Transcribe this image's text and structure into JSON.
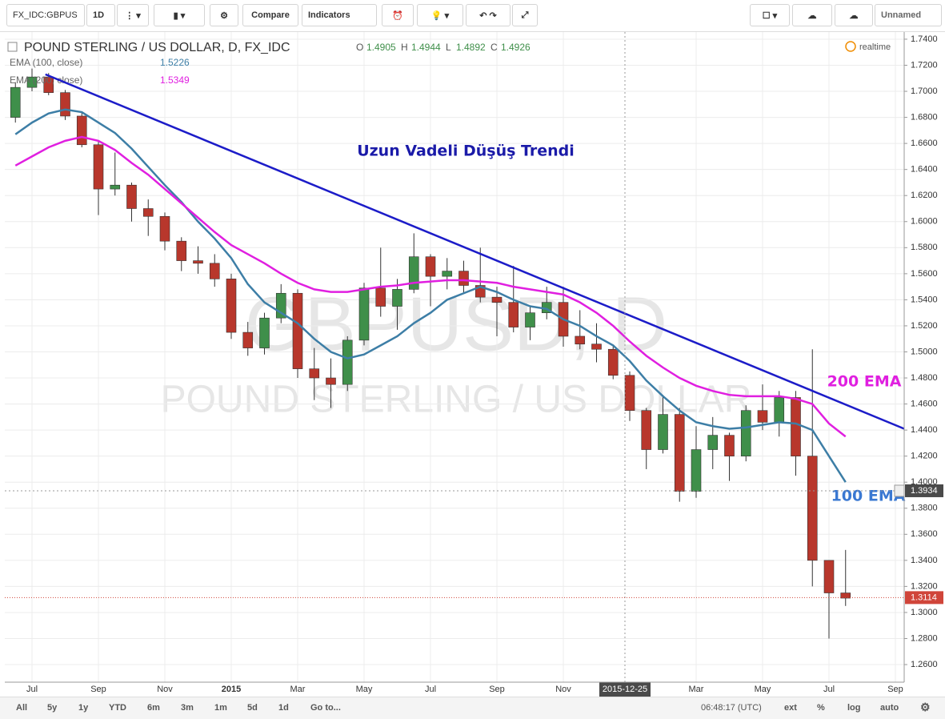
{
  "ui": {
    "toolbar": {
      "symbol": "FX_IDC:GBPUS",
      "interval": "1D",
      "compare": "Compare",
      "indicators": "Indicators",
      "layout": "Unnamed"
    },
    "bottom_bar": {
      "ranges": [
        "All",
        "5y",
        "1y",
        "YTD",
        "6m",
        "3m",
        "1m",
        "5d",
        "1d"
      ],
      "goto": "Go to...",
      "clock": "06:48:17 (UTC)",
      "options": [
        "ext",
        "%",
        "log",
        "auto"
      ]
    }
  },
  "chart_data": {
    "type": "candlestick",
    "title": "POUND STERLING / US DOLLAR, D, FX_IDC",
    "ohlc_legend": [
      {
        "label": "O",
        "value": 1.4905
      },
      {
        "label": "H",
        "value": 1.4944
      },
      {
        "label": "L",
        "value": 1.4892
      },
      {
        "label": "C",
        "value": 1.4926
      }
    ],
    "status": "realtime",
    "watermark": [
      "GBPUSD, D",
      "POUND STERLING / US DOLLAR"
    ],
    "categories": [
      null,
      "Jul",
      null,
      null,
      null,
      "Sep",
      null,
      null,
      null,
      "Nov",
      null,
      null,
      null,
      "2015",
      null,
      null,
      null,
      "Mar",
      null,
      null,
      null,
      "May",
      null,
      null,
      null,
      "Jul",
      null,
      null,
      null,
      "Sep",
      null,
      null,
      null,
      "Nov",
      null,
      null,
      null,
      null,
      null,
      null,
      null,
      "Mar",
      null,
      null,
      null,
      "May",
      null,
      null,
      null,
      "Jul",
      null,
      null,
      null,
      "Sep"
    ],
    "open": [
      1.68,
      1.703,
      1.711,
      1.699,
      1.681,
      1.659,
      1.625,
      1.628,
      1.61,
      1.604,
      1.585,
      1.57,
      1.568,
      1.556,
      1.515,
      1.503,
      1.526,
      1.545,
      1.487,
      1.48,
      1.475,
      1.509,
      1.549,
      1.535,
      1.548,
      1.573,
      1.558,
      1.562,
      1.551,
      1.542,
      1.538,
      1.519,
      1.53,
      1.538,
      1.512,
      1.506,
      1.502,
      1.482,
      1.455,
      1.425,
      1.452,
      1.393,
      1.425,
      1.436,
      1.42,
      1.455,
      1.446,
      1.465,
      1.42,
      1.34,
      1.315,
      null,
      null,
      null
    ],
    "high": [
      1.707,
      1.7175,
      1.714,
      1.701,
      1.684,
      1.662,
      1.653,
      1.63,
      1.617,
      1.607,
      1.588,
      1.581,
      1.575,
      1.56,
      1.523,
      1.53,
      1.552,
      1.548,
      1.503,
      1.495,
      1.512,
      1.553,
      1.58,
      1.556,
      1.591,
      1.575,
      1.572,
      1.57,
      1.58,
      1.55,
      1.566,
      1.535,
      1.55,
      1.55,
      1.532,
      1.522,
      1.505,
      1.485,
      1.457,
      1.467,
      1.457,
      1.443,
      1.45,
      1.438,
      1.459,
      1.475,
      1.47,
      1.47,
      1.502,
      1.34,
      1.348,
      null,
      null,
      null
    ],
    "low": [
      1.676,
      1.7,
      1.697,
      1.678,
      1.657,
      1.605,
      1.62,
      1.6,
      1.589,
      1.578,
      1.562,
      1.56,
      1.55,
      1.51,
      1.497,
      1.498,
      1.522,
      1.48,
      1.463,
      1.457,
      1.47,
      1.505,
      1.527,
      1.517,
      1.545,
      1.535,
      1.548,
      1.545,
      1.538,
      1.512,
      1.515,
      1.509,
      1.525,
      1.504,
      1.502,
      1.492,
      1.479,
      1.447,
      1.41,
      1.422,
      1.385,
      1.388,
      1.41,
      1.401,
      1.416,
      1.44,
      1.435,
      1.405,
      1.32,
      1.28,
      1.305,
      null,
      null,
      null
    ],
    "close": [
      1.703,
      1.711,
      1.699,
      1.681,
      1.659,
      1.625,
      1.628,
      1.61,
      1.604,
      1.585,
      1.57,
      1.568,
      1.556,
      1.515,
      1.503,
      1.526,
      1.545,
      1.487,
      1.48,
      1.475,
      1.509,
      1.549,
      1.535,
      1.548,
      1.573,
      1.558,
      1.562,
      1.551,
      1.542,
      1.538,
      1.519,
      1.53,
      1.538,
      1.512,
      1.506,
      1.502,
      1.482,
      1.455,
      1.425,
      1.452,
      1.393,
      1.425,
      1.436,
      1.42,
      1.455,
      1.446,
      1.465,
      1.42,
      1.34,
      1.315,
      1.311,
      null,
      null,
      null
    ],
    "up_color": "#3f8f4a",
    "down_color": "#b8372c",
    "series": [
      {
        "name": "EMA (100, close)",
        "color": "#3d7ea6",
        "legend_value": 1.5226,
        "values": [
          1.667,
          1.676,
          1.683,
          1.686,
          1.684,
          1.676,
          1.668,
          1.656,
          1.642,
          1.628,
          1.615,
          1.6,
          1.587,
          1.572,
          1.552,
          1.538,
          1.53,
          1.522,
          1.51,
          1.5,
          1.495,
          1.498,
          1.505,
          1.512,
          1.522,
          1.53,
          1.54,
          1.545,
          1.55,
          1.546,
          1.54,
          1.535,
          1.533,
          1.525,
          1.52,
          1.512,
          1.505,
          1.493,
          1.478,
          1.466,
          1.455,
          1.446,
          1.443,
          1.441,
          1.442,
          1.444,
          1.446,
          1.445,
          1.44,
          1.42,
          1.4,
          null,
          null,
          null
        ]
      },
      {
        "name": "EMA (200, close)",
        "color": "#e01fe0",
        "legend_value": 1.5349,
        "values": [
          1.643,
          1.65,
          1.657,
          1.662,
          1.665,
          1.662,
          1.655,
          1.645,
          1.636,
          1.625,
          1.614,
          1.603,
          1.592,
          1.582,
          1.575,
          1.568,
          1.56,
          1.553,
          1.548,
          1.546,
          1.546,
          1.548,
          1.55,
          1.551,
          1.553,
          1.554,
          1.555,
          1.555,
          1.554,
          1.553,
          1.55,
          1.548,
          1.546,
          1.544,
          1.538,
          1.53,
          1.52,
          1.508,
          1.497,
          1.488,
          1.48,
          1.474,
          1.47,
          1.467,
          1.466,
          1.466,
          1.466,
          1.464,
          1.46,
          1.445,
          1.435,
          null,
          null,
          null
        ]
      }
    ],
    "trendline": {
      "color": "#1c1cc8",
      "values": [
        1.713,
        1.441
      ]
    },
    "annotations": [
      {
        "text": "Uzun Vadeli Düşüş Trendi",
        "color": "#1a1aa8"
      },
      {
        "text": "200 EMA",
        "color": "#e01fe0"
      },
      {
        "text": "100 EMA",
        "color": "#3a78d2"
      }
    ],
    "crosshair": {
      "date": "2015-12-25",
      "price": 1.3934
    },
    "last_price": 1.3114,
    "last_price_color": "#d0453a",
    "ylim": [
      1.2465,
      1.7455
    ],
    "yticks": [
      {
        "value": 1.26,
        "label": "1.2600"
      },
      {
        "value": 1.28,
        "label": "1.2800"
      },
      {
        "value": 1.3,
        "label": "1.3000"
      },
      {
        "value": 1.32,
        "label": "1.3200"
      },
      {
        "value": 1.34,
        "label": "1.3400"
      },
      {
        "value": 1.36,
        "label": "1.3600"
      },
      {
        "value": 1.38,
        "label": "1.3800"
      },
      {
        "value": 1.4,
        "label": "1.4000"
      },
      {
        "value": 1.42,
        "label": "1.4200"
      },
      {
        "value": 1.44,
        "label": "1.4400"
      },
      {
        "value": 1.46,
        "label": "1.4600"
      },
      {
        "value": 1.48,
        "label": "1.4800"
      },
      {
        "value": 1.5,
        "label": "1.5000"
      },
      {
        "value": 1.52,
        "label": "1.5200"
      },
      {
        "value": 1.54,
        "label": "1.5400"
      },
      {
        "value": 1.56,
        "label": "1.5600"
      },
      {
        "value": 1.58,
        "label": "1.5800"
      },
      {
        "value": 1.6,
        "label": "1.6000"
      },
      {
        "value": 1.62,
        "label": "1.6200"
      },
      {
        "value": 1.64,
        "label": "1.6400"
      },
      {
        "value": 1.66,
        "label": "1.6600"
      },
      {
        "value": 1.68,
        "label": "1.6800"
      },
      {
        "value": 1.7,
        "label": "1.7000"
      },
      {
        "value": 1.72,
        "label": "1.7200"
      },
      {
        "value": 1.74,
        "label": "1.7400"
      }
    ],
    "grid": true
  }
}
